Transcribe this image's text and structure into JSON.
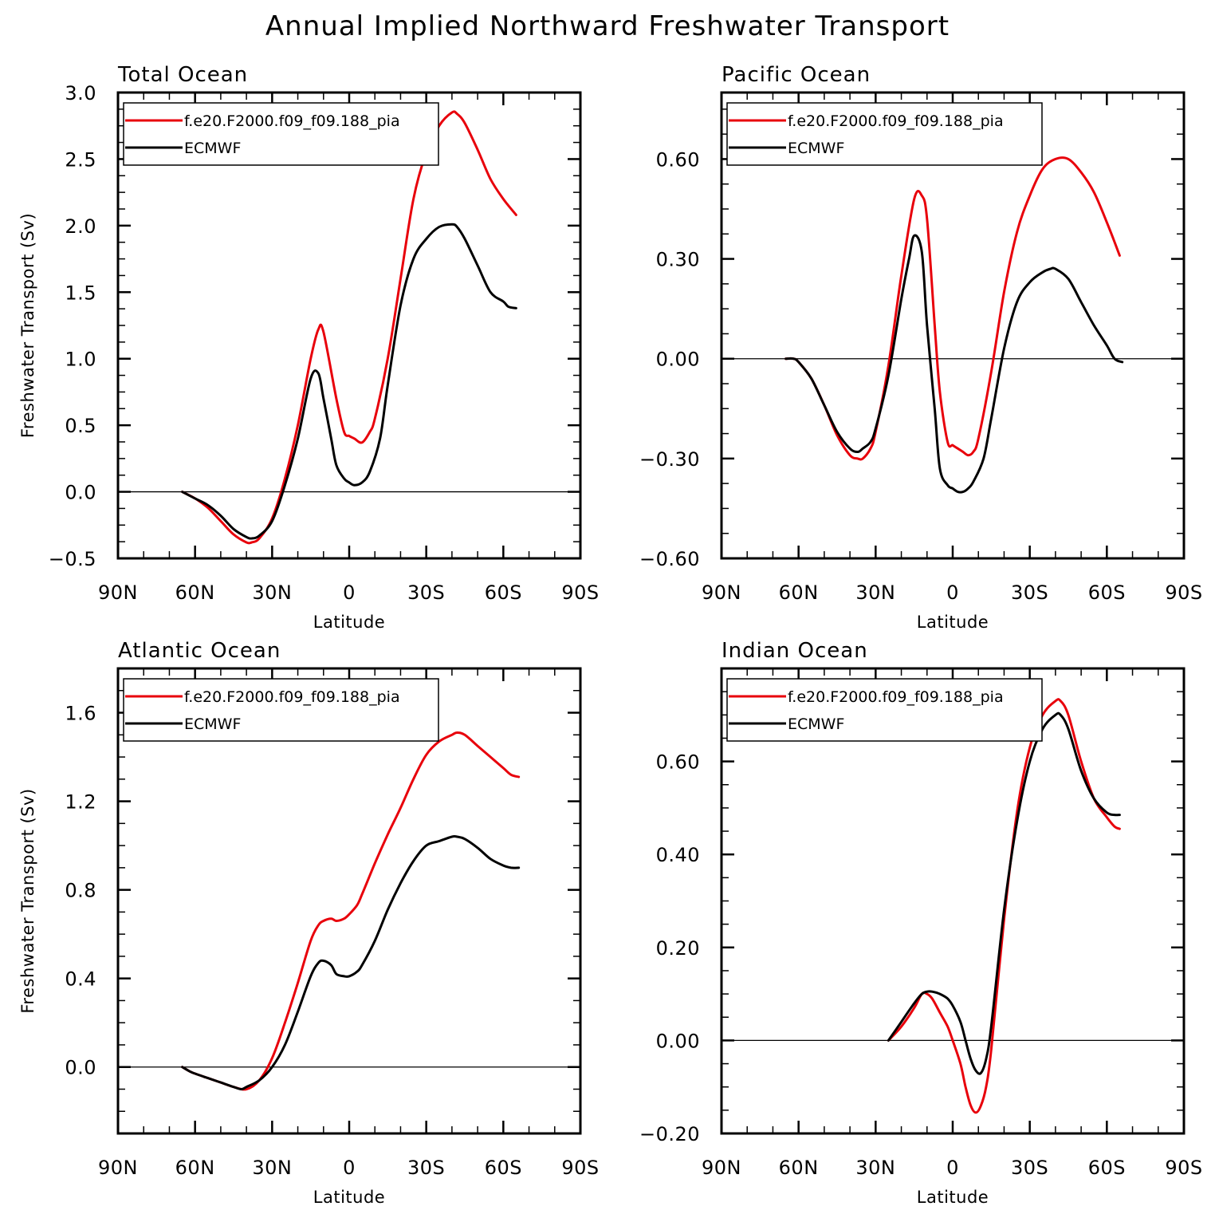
{
  "title": "Annual Implied Northward Freshwater Transport",
  "chart_data": [
    {
      "type": "line",
      "title": "Total Ocean",
      "xlabel": "Latitude",
      "ylabel": "Freshwater Transport (Sv)",
      "xlim": [
        -90,
        90
      ],
      "ylim": [
        -0.5,
        3.0
      ],
      "xticks": [
        -90,
        -60,
        -30,
        0,
        30,
        60,
        90
      ],
      "xtick_labels": [
        "90N",
        "60N",
        "30N",
        "0",
        "30S",
        "60S",
        "90S"
      ],
      "yticks": [
        -0.5,
        0.0,
        0.5,
        1.0,
        1.5,
        2.0,
        2.5,
        3.0
      ],
      "ytick_labels": [
        "−0.5",
        "0.0",
        "0.5",
        "1.0",
        "1.5",
        "2.0",
        "2.5",
        "3.0"
      ],
      "legend_position": "top-left",
      "series": [
        {
          "name": "f.e20.F2000.f09_f09.188_pia",
          "color": "#e8000b",
          "x": [
            -65,
            -60,
            -55,
            -50,
            -45,
            -40,
            -38,
            -35,
            -30,
            -25,
            -20,
            -15,
            -12,
            -10,
            -5,
            -2,
            0,
            2,
            5,
            8,
            10,
            15,
            20,
            25,
            30,
            35,
            40,
            42,
            45,
            50,
            55,
            60,
            65
          ],
          "y": [
            0,
            -0.05,
            -0.12,
            -0.22,
            -0.32,
            -0.38,
            -0.38,
            -0.35,
            -0.2,
            0.1,
            0.5,
            1.0,
            1.22,
            1.2,
            0.7,
            0.45,
            0.42,
            0.4,
            0.37,
            0.45,
            0.55,
            1.0,
            1.6,
            2.2,
            2.55,
            2.75,
            2.85,
            2.84,
            2.77,
            2.57,
            2.35,
            2.2,
            2.08
          ]
        },
        {
          "name": "ECMWF",
          "color": "#000000",
          "x": [
            -65,
            -60,
            -55,
            -50,
            -45,
            -40,
            -38,
            -35,
            -30,
            -25,
            -20,
            -15,
            -12,
            -10,
            -7,
            -5,
            -2,
            0,
            2,
            5,
            8,
            12,
            15,
            20,
            25,
            30,
            35,
            40,
            42,
            45,
            50,
            55,
            60,
            62,
            65
          ],
          "y": [
            0,
            -0.05,
            -0.1,
            -0.18,
            -0.28,
            -0.34,
            -0.35,
            -0.33,
            -0.22,
            0.05,
            0.4,
            0.85,
            0.89,
            0.7,
            0.4,
            0.2,
            0.1,
            0.07,
            0.05,
            0.07,
            0.15,
            0.4,
            0.8,
            1.4,
            1.75,
            1.9,
            1.99,
            2.01,
            1.99,
            1.9,
            1.7,
            1.5,
            1.43,
            1.39,
            1.38
          ]
        }
      ]
    },
    {
      "type": "line",
      "title": "Pacific Ocean",
      "xlabel": "Latitude",
      "ylabel": "",
      "xlim": [
        -90,
        90
      ],
      "ylim": [
        -0.6,
        0.8
      ],
      "xticks": [
        -90,
        -60,
        -30,
        0,
        30,
        60,
        90
      ],
      "xtick_labels": [
        "90N",
        "60N",
        "30N",
        "0",
        "30S",
        "60S",
        "90S"
      ],
      "yticks": [
        -0.6,
        -0.3,
        0.0,
        0.3,
        0.6
      ],
      "ytick_labels": [
        "−0.60",
        "−0.30",
        "0.00",
        "0.30",
        "0.60"
      ],
      "legend_position": "top-left",
      "series": [
        {
          "name": "f.e20.F2000.f09_f09.188_pia",
          "color": "#e8000b",
          "x": [
            -65,
            -62,
            -60,
            -55,
            -50,
            -45,
            -40,
            -37,
            -35,
            -32,
            -30,
            -25,
            -20,
            -15,
            -12,
            -10,
            -7,
            -5,
            -2,
            0,
            2,
            4,
            6,
            8,
            10,
            15,
            20,
            25,
            30,
            35,
            40,
            45,
            50,
            55,
            60,
            65
          ],
          "y": [
            0,
            0,
            -0.01,
            -0.06,
            -0.14,
            -0.23,
            -0.29,
            -0.3,
            -0.3,
            -0.27,
            -0.22,
            -0.02,
            0.25,
            0.48,
            0.49,
            0.42,
            0.1,
            -0.1,
            -0.25,
            -0.26,
            -0.27,
            -0.28,
            -0.29,
            -0.28,
            -0.24,
            -0.04,
            0.2,
            0.38,
            0.49,
            0.57,
            0.6,
            0.6,
            0.56,
            0.5,
            0.41,
            0.31
          ]
        },
        {
          "name": "ECMWF",
          "color": "#000000",
          "x": [
            -65,
            -62,
            -60,
            -55,
            -50,
            -45,
            -40,
            -37,
            -35,
            -32,
            -30,
            -25,
            -20,
            -17,
            -15,
            -12,
            -10,
            -7,
            -5,
            -2,
            0,
            2,
            4,
            6,
            8,
            12,
            15,
            20,
            25,
            30,
            35,
            38,
            40,
            45,
            50,
            55,
            60,
            63,
            66
          ],
          "y": [
            0,
            0,
            -0.01,
            -0.06,
            -0.14,
            -0.22,
            -0.27,
            -0.28,
            -0.27,
            -0.25,
            -0.21,
            -0.05,
            0.18,
            0.3,
            0.37,
            0.32,
            0.1,
            -0.15,
            -0.33,
            -0.38,
            -0.39,
            -0.4,
            -0.4,
            -0.39,
            -0.37,
            -0.3,
            -0.18,
            0.03,
            0.17,
            0.23,
            0.26,
            0.27,
            0.27,
            0.24,
            0.17,
            0.1,
            0.04,
            0.0,
            -0.01
          ]
        }
      ]
    },
    {
      "type": "line",
      "title": "Atlantic Ocean",
      "xlabel": "Latitude",
      "ylabel": "Freshwater Transport (Sv)",
      "xlim": [
        -90,
        90
      ],
      "ylim": [
        -0.3,
        1.8
      ],
      "xticks": [
        -90,
        -60,
        -30,
        0,
        30,
        60,
        90
      ],
      "xtick_labels": [
        "90N",
        "60N",
        "30N",
        "0",
        "30S",
        "60S",
        "90S"
      ],
      "yticks": [
        0.0,
        0.4,
        0.8,
        1.2,
        1.6
      ],
      "ytick_labels": [
        "0.0",
        "0.4",
        "0.8",
        "1.2",
        "1.6"
      ],
      "legend_position": "top-left",
      "series": [
        {
          "name": "f.e20.F2000.f09_f09.188_pia",
          "color": "#e8000b",
          "x": [
            -65,
            -62,
            -60,
            -55,
            -50,
            -45,
            -40,
            -35,
            -30,
            -25,
            -20,
            -15,
            -12,
            -10,
            -7,
            -5,
            -2,
            0,
            3,
            5,
            10,
            15,
            20,
            25,
            30,
            35,
            40,
            42,
            45,
            50,
            55,
            60,
            63,
            66
          ],
          "y": [
            0,
            -0.02,
            -0.03,
            -0.05,
            -0.07,
            -0.09,
            -0.1,
            -0.06,
            0.04,
            0.2,
            0.38,
            0.57,
            0.64,
            0.66,
            0.67,
            0.66,
            0.67,
            0.69,
            0.73,
            0.78,
            0.92,
            1.05,
            1.17,
            1.3,
            1.41,
            1.47,
            1.5,
            1.51,
            1.5,
            1.45,
            1.4,
            1.35,
            1.32,
            1.31
          ]
        },
        {
          "name": "ECMWF",
          "color": "#000000",
          "x": [
            -65,
            -62,
            -60,
            -55,
            -50,
            -45,
            -42,
            -40,
            -35,
            -30,
            -25,
            -20,
            -15,
            -12,
            -10,
            -7,
            -5,
            -2,
            0,
            3,
            5,
            10,
            15,
            20,
            25,
            30,
            35,
            40,
            42,
            45,
            50,
            55,
            60,
            63,
            66
          ],
          "y": [
            0,
            -0.02,
            -0.03,
            -0.05,
            -0.07,
            -0.09,
            -0.1,
            -0.09,
            -0.06,
            0.0,
            0.1,
            0.25,
            0.41,
            0.47,
            0.48,
            0.46,
            0.42,
            0.41,
            0.41,
            0.43,
            0.46,
            0.57,
            0.71,
            0.83,
            0.93,
            1.0,
            1.02,
            1.04,
            1.04,
            1.03,
            0.99,
            0.94,
            0.91,
            0.9,
            0.9
          ]
        }
      ]
    },
    {
      "type": "line",
      "title": "Indian Ocean",
      "xlabel": "Latitude",
      "ylabel": "",
      "xlim": [
        -90,
        90
      ],
      "ylim": [
        -0.2,
        0.8
      ],
      "xticks": [
        -90,
        -60,
        -30,
        0,
        30,
        60,
        90
      ],
      "xtick_labels": [
        "90N",
        "60N",
        "30N",
        "0",
        "30S",
        "60S",
        "90S"
      ],
      "yticks": [
        -0.2,
        0.0,
        0.2,
        0.4,
        0.6
      ],
      "ytick_labels": [
        "−0.20",
        "0.00",
        "0.20",
        "0.40",
        "0.60"
      ],
      "legend_position": "top-left",
      "series": [
        {
          "name": "f.e20.F2000.f09_f09.188_pia",
          "color": "#e8000b",
          "x": [
            -25,
            -20,
            -15,
            -12,
            -10,
            -8,
            -5,
            -2,
            0,
            3,
            5,
            7,
            9,
            11,
            13,
            15,
            20,
            25,
            30,
            35,
            40,
            42,
            45,
            50,
            55,
            60,
            63,
            65
          ],
          "y": [
            0.0,
            0.03,
            0.07,
            0.1,
            0.1,
            0.09,
            0.06,
            0.03,
            0.0,
            -0.05,
            -0.1,
            -0.14,
            -0.155,
            -0.14,
            -0.1,
            -0.02,
            0.26,
            0.49,
            0.63,
            0.7,
            0.73,
            0.73,
            0.7,
            0.6,
            0.52,
            0.48,
            0.46,
            0.455
          ]
        },
        {
          "name": "ECMWF",
          "color": "#000000",
          "x": [
            -25,
            -20,
            -15,
            -12,
            -10,
            -8,
            -5,
            -2,
            0,
            3,
            5,
            7,
            9,
            11,
            13,
            15,
            20,
            25,
            30,
            35,
            40,
            42,
            45,
            50,
            55,
            60,
            63,
            65
          ],
          "y": [
            0.0,
            0.04,
            0.08,
            0.1,
            0.105,
            0.105,
            0.1,
            0.09,
            0.075,
            0.04,
            0.0,
            -0.04,
            -0.065,
            -0.07,
            -0.04,
            0.03,
            0.28,
            0.47,
            0.6,
            0.67,
            0.7,
            0.7,
            0.67,
            0.58,
            0.52,
            0.49,
            0.485,
            0.485
          ]
        }
      ]
    }
  ]
}
